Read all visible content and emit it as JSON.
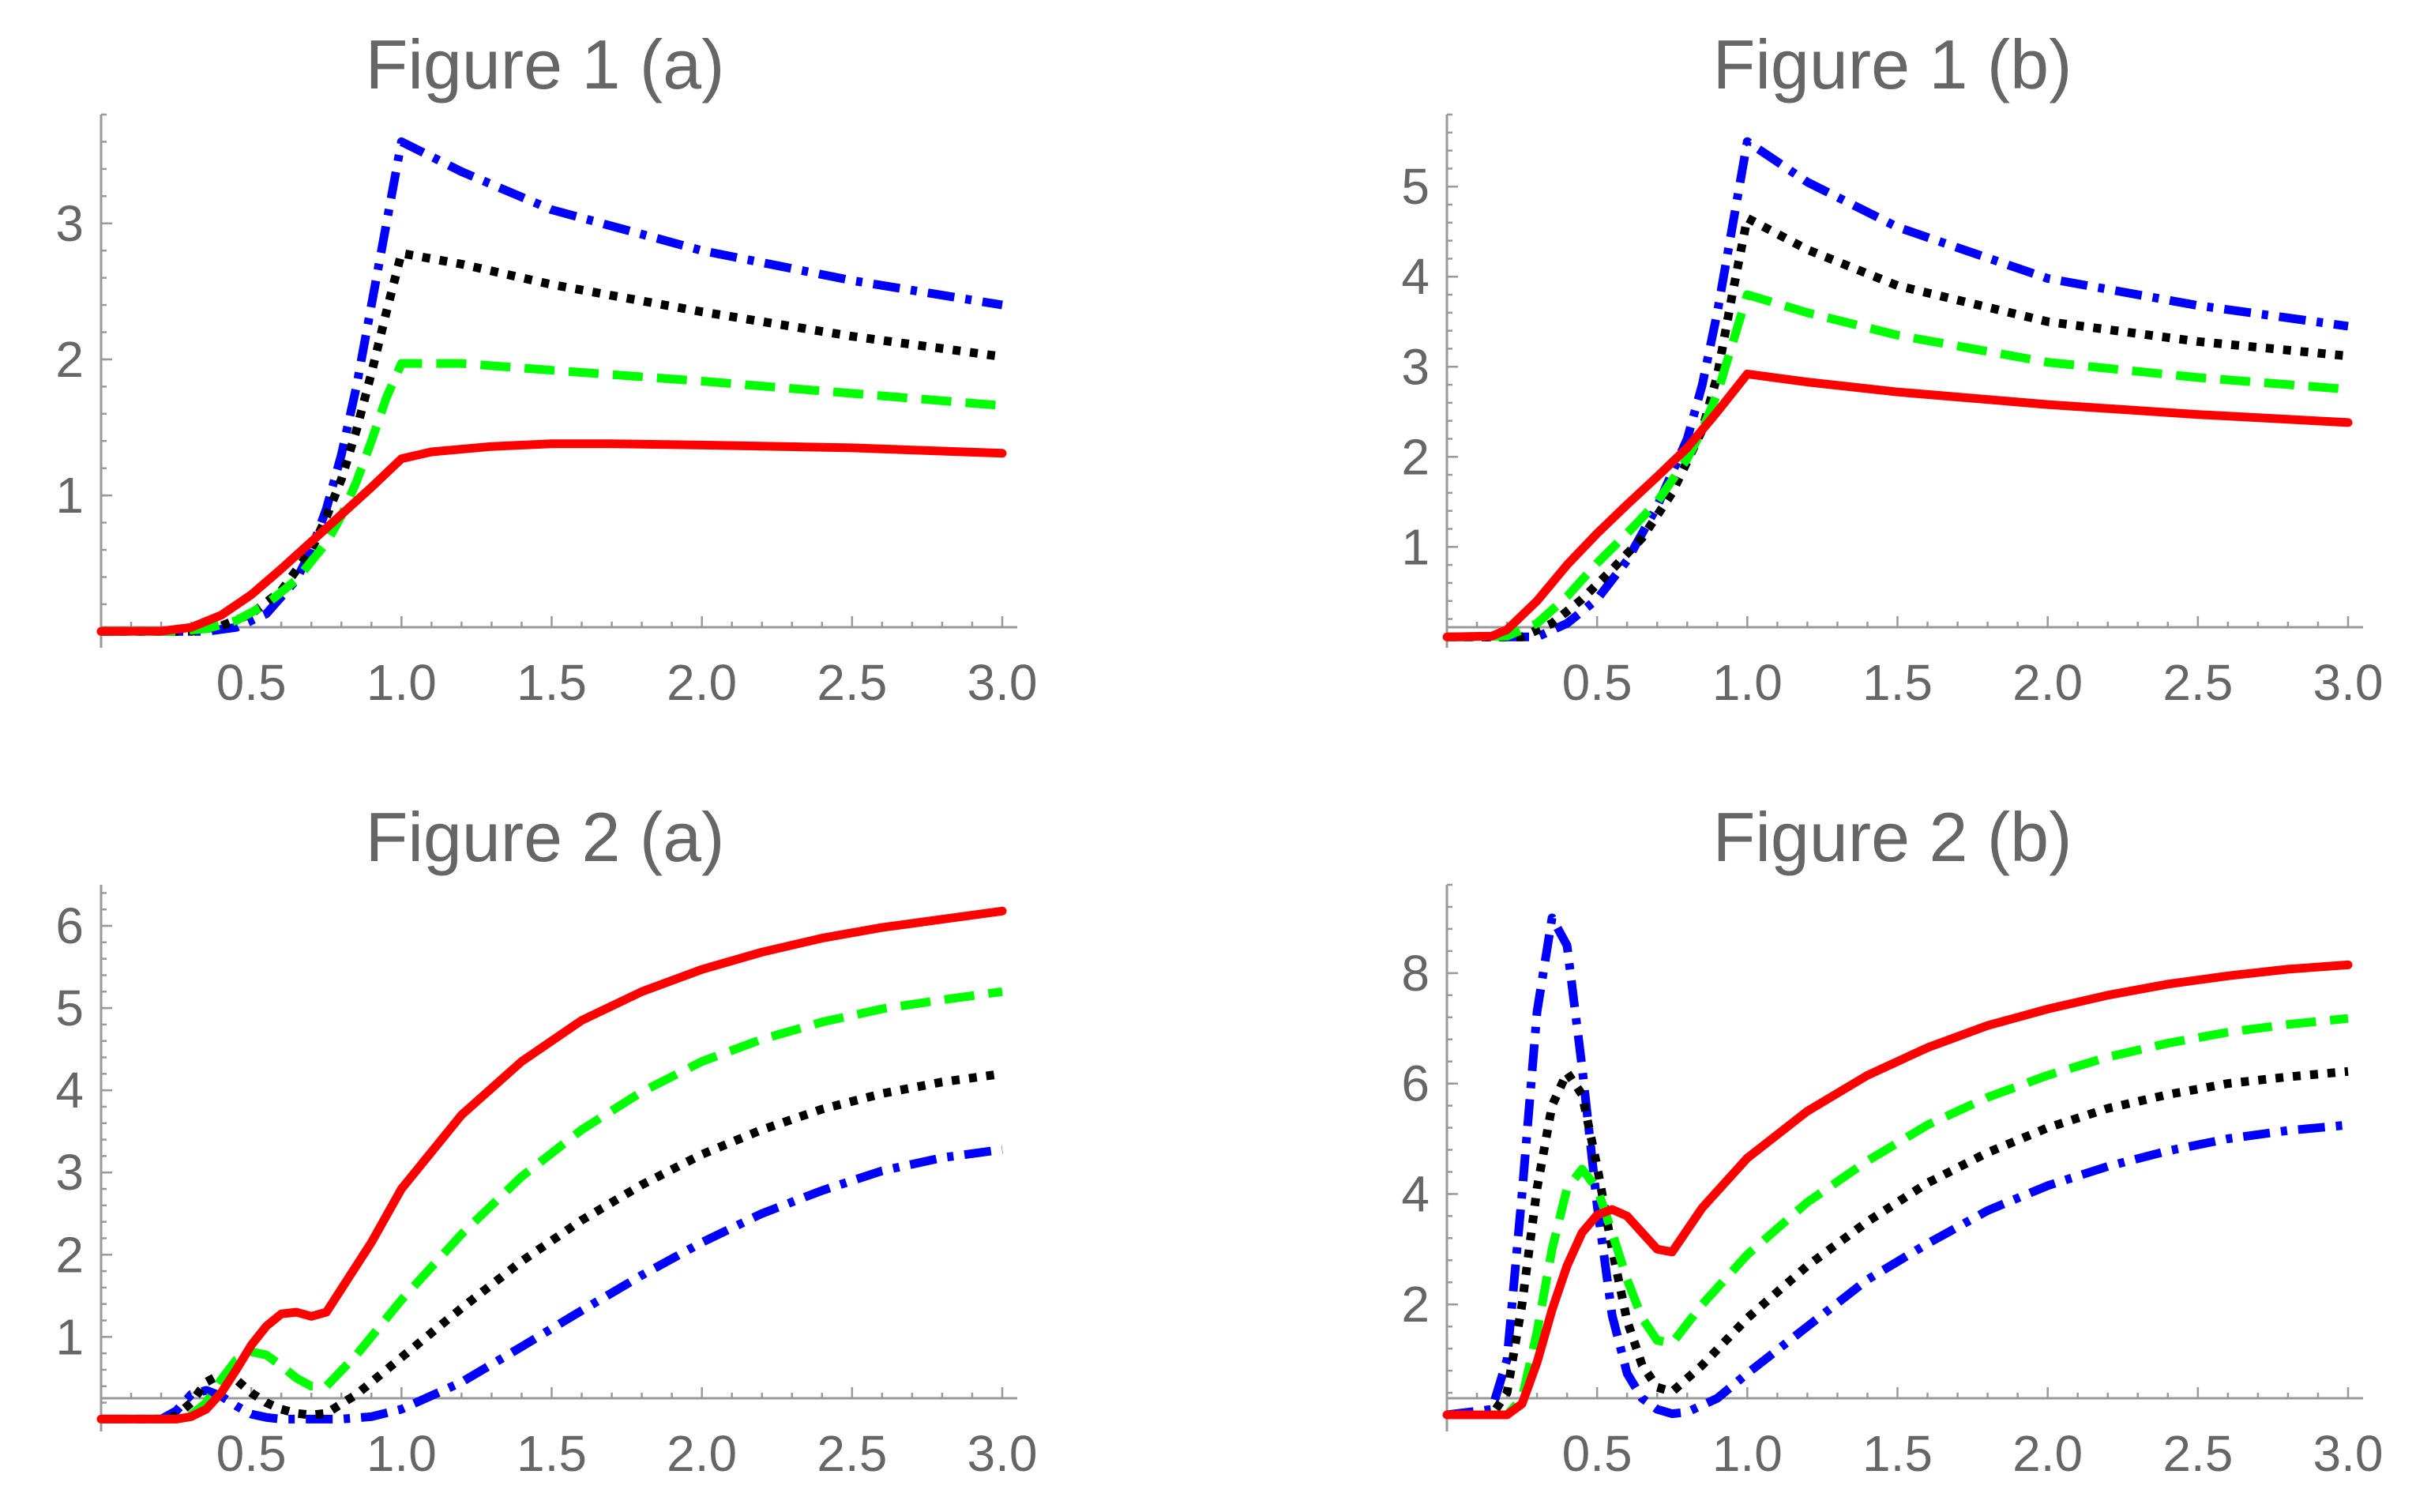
{
  "chart_data": [
    {
      "type": "line",
      "title": "Figure 1 (a)",
      "xlabel": "",
      "ylabel": "",
      "xlim": [
        0,
        3.05
      ],
      "ylim": [
        -0.12,
        3.8
      ],
      "xticks": [
        0.5,
        1.0,
        1.5,
        2.0,
        2.5,
        3.0
      ],
      "xtick_labels": [
        "0.5",
        "1.0",
        "1.5",
        "2.0",
        "2.5",
        "3.0"
      ],
      "yticks": [
        1,
        2,
        3
      ],
      "ytick_labels": [
        "1",
        "2",
        "3"
      ],
      "grid": false,
      "legend": "none",
      "series": [
        {
          "name": "red",
          "color": "#ff0000",
          "style": "solid",
          "x": [
            0,
            0.2,
            0.3,
            0.4,
            0.5,
            0.6,
            0.7,
            0.8,
            0.9,
            1.0,
            1.1,
            1.3,
            1.5,
            1.7,
            2.0,
            2.5,
            3.0
          ],
          "y": [
            0,
            0.002,
            0.03,
            0.12,
            0.27,
            0.46,
            0.66,
            0.86,
            1.06,
            1.27,
            1.32,
            1.36,
            1.38,
            1.38,
            1.37,
            1.35,
            1.31
          ]
        },
        {
          "name": "green",
          "color": "#00ff00",
          "style": "dashed",
          "x": [
            0,
            0.25,
            0.35,
            0.45,
            0.55,
            0.65,
            0.75,
            0.8,
            0.85,
            0.9,
            0.95,
            1.0,
            1.2,
            1.5,
            2.0,
            2.5,
            3.0
          ],
          "y": [
            0,
            0,
            0.02,
            0.08,
            0.2,
            0.38,
            0.65,
            0.85,
            1.1,
            1.4,
            1.72,
            1.97,
            1.97,
            1.92,
            1.84,
            1.75,
            1.66
          ]
        },
        {
          "name": "black",
          "color": "#000000",
          "style": "dotted",
          "x": [
            0,
            0.3,
            0.4,
            0.5,
            0.6,
            0.7,
            0.75,
            0.8,
            0.85,
            0.9,
            0.95,
            1.0,
            1.2,
            1.5,
            2.0,
            2.5,
            3.0
          ],
          "y": [
            0,
            0,
            0.04,
            0.13,
            0.3,
            0.6,
            0.84,
            1.12,
            1.48,
            1.9,
            2.35,
            2.78,
            2.7,
            2.55,
            2.35,
            2.17,
            2.02
          ]
        },
        {
          "name": "blue",
          "color": "#0000ff",
          "style": "dashdot",
          "x": [
            0,
            0.35,
            0.45,
            0.55,
            0.65,
            0.7,
            0.75,
            0.8,
            0.85,
            0.9,
            0.95,
            1.0,
            1.2,
            1.5,
            2.0,
            2.5,
            3.0
          ],
          "y": [
            0,
            0,
            0.03,
            0.13,
            0.38,
            0.6,
            0.9,
            1.3,
            1.8,
            2.4,
            3.0,
            3.6,
            3.38,
            3.1,
            2.8,
            2.58,
            2.4
          ]
        }
      ]
    },
    {
      "type": "line",
      "title": "Figure 1 (b)",
      "xlabel": "",
      "ylabel": "",
      "xlim": [
        0,
        3.05
      ],
      "ylim": [
        -0.12,
        5.8
      ],
      "xticks": [
        0.5,
        1.0,
        1.5,
        2.0,
        2.5,
        3.0
      ],
      "xtick_labels": [
        "0.5",
        "1.0",
        "1.5",
        "2.0",
        "2.5",
        "3.0"
      ],
      "yticks": [
        1,
        2,
        3,
        4,
        5
      ],
      "ytick_labels": [
        "1",
        "2",
        "3",
        "4",
        "5"
      ],
      "grid": false,
      "legend": "none",
      "series": [
        {
          "name": "red",
          "color": "#ff0000",
          "style": "solid",
          "x": [
            0,
            0.15,
            0.2,
            0.3,
            0.4,
            0.5,
            0.6,
            0.7,
            0.8,
            0.9,
            1.0,
            1.2,
            1.5,
            2.0,
            2.5,
            3.0
          ],
          "y": [
            0,
            0.01,
            0.08,
            0.4,
            0.8,
            1.15,
            1.47,
            1.78,
            2.1,
            2.5,
            2.92,
            2.83,
            2.72,
            2.58,
            2.47,
            2.38
          ]
        },
        {
          "name": "green",
          "color": "#00ff00",
          "style": "dashed",
          "x": [
            0,
            0.2,
            0.3,
            0.4,
            0.5,
            0.6,
            0.7,
            0.8,
            0.85,
            0.9,
            0.95,
            1.0,
            1.2,
            1.5,
            2.0,
            2.5,
            3.0
          ],
          "y": [
            0,
            0.01,
            0.15,
            0.45,
            0.82,
            1.15,
            1.5,
            1.98,
            2.3,
            2.7,
            3.25,
            3.8,
            3.6,
            3.35,
            3.05,
            2.88,
            2.75
          ]
        },
        {
          "name": "black",
          "color": "#000000",
          "style": "dotted",
          "x": [
            0,
            0.25,
            0.35,
            0.45,
            0.55,
            0.65,
            0.75,
            0.85,
            0.9,
            0.95,
            1.0,
            1.2,
            1.5,
            2.0,
            2.5,
            3.0
          ],
          "y": [
            0,
            0,
            0.15,
            0.42,
            0.75,
            1.1,
            1.6,
            2.3,
            2.9,
            3.8,
            4.65,
            4.3,
            3.9,
            3.5,
            3.28,
            3.12
          ]
        },
        {
          "name": "blue",
          "color": "#0000ff",
          "style": "dashdot",
          "x": [
            0,
            0.3,
            0.4,
            0.5,
            0.6,
            0.7,
            0.8,
            0.85,
            0.9,
            0.95,
            1.0,
            1.2,
            1.5,
            2.0,
            2.5,
            3.0
          ],
          "y": [
            0,
            0,
            0.15,
            0.42,
            0.85,
            1.45,
            2.2,
            2.8,
            3.6,
            4.55,
            5.5,
            5.05,
            4.55,
            3.98,
            3.68,
            3.45
          ]
        }
      ]
    },
    {
      "type": "line",
      "title": "Figure 2 (a)",
      "xlabel": "",
      "ylabel": "",
      "xlim": [
        0,
        3.05
      ],
      "ylim": [
        -0.15,
        6.5
      ],
      "xticks": [
        0.5,
        1.0,
        1.5,
        2.0,
        2.5,
        3.0
      ],
      "xtick_labels": [
        "0.5",
        "1.0",
        "1.5",
        "2.0",
        "2.5",
        "3.0"
      ],
      "yticks": [
        1,
        2,
        3,
        4,
        5,
        6
      ],
      "ytick_labels": [
        "1",
        "2",
        "3",
        "4",
        "5",
        "6"
      ],
      "grid": false,
      "legend": "none",
      "series": [
        {
          "name": "red",
          "color": "#ff0000",
          "style": "solid",
          "x": [
            0,
            0.25,
            0.3,
            0.35,
            0.4,
            0.45,
            0.5,
            0.55,
            0.6,
            0.65,
            0.7,
            0.75,
            0.9,
            1.0,
            1.2,
            1.4,
            1.6,
            1.8,
            2.0,
            2.2,
            2.4,
            2.6,
            2.8,
            3.0
          ],
          "y": [
            0,
            0,
            0.03,
            0.12,
            0.32,
            0.6,
            0.9,
            1.13,
            1.28,
            1.3,
            1.25,
            1.3,
            2.15,
            2.8,
            3.7,
            4.35,
            4.85,
            5.2,
            5.47,
            5.68,
            5.85,
            5.98,
            6.08,
            6.18
          ]
        },
        {
          "name": "green",
          "color": "#00ff00",
          "style": "dashed",
          "x": [
            0,
            0.25,
            0.3,
            0.35,
            0.4,
            0.45,
            0.5,
            0.55,
            0.6,
            0.65,
            0.7,
            0.75,
            0.85,
            1.0,
            1.2,
            1.4,
            1.6,
            1.8,
            2.0,
            2.2,
            2.4,
            2.6,
            2.8,
            3.0
          ],
          "y": [
            0,
            0,
            0.05,
            0.2,
            0.48,
            0.72,
            0.82,
            0.78,
            0.65,
            0.5,
            0.4,
            0.4,
            0.78,
            1.45,
            2.25,
            2.95,
            3.52,
            3.98,
            4.35,
            4.62,
            4.83,
            4.99,
            5.1,
            5.2
          ]
        },
        {
          "name": "black",
          "color": "#000000",
          "style": "dotted",
          "x": [
            0,
            0.2,
            0.25,
            0.3,
            0.35,
            0.4,
            0.45,
            0.5,
            0.55,
            0.6,
            0.65,
            0.7,
            0.75,
            0.85,
            1.0,
            1.2,
            1.4,
            1.6,
            1.8,
            2.0,
            2.2,
            2.4,
            2.6,
            2.8,
            3.0
          ],
          "y": [
            0,
            0,
            0.04,
            0.2,
            0.45,
            0.55,
            0.48,
            0.32,
            0.2,
            0.12,
            0.07,
            0.05,
            0.07,
            0.3,
            0.75,
            1.35,
            1.92,
            2.42,
            2.85,
            3.22,
            3.52,
            3.77,
            3.96,
            4.1,
            4.2
          ]
        },
        {
          "name": "blue",
          "color": "#0000ff",
          "style": "dashdot",
          "x": [
            0,
            0.2,
            0.25,
            0.3,
            0.35,
            0.4,
            0.45,
            0.5,
            0.55,
            0.6,
            0.7,
            0.8,
            0.9,
            1.0,
            1.2,
            1.4,
            1.6,
            1.8,
            2.0,
            2.2,
            2.4,
            2.6,
            2.8,
            3.0
          ],
          "y": [
            0,
            0,
            0.1,
            0.3,
            0.35,
            0.28,
            0.16,
            0.06,
            0.02,
            0,
            0,
            0,
            0.03,
            0.12,
            0.45,
            0.88,
            1.32,
            1.75,
            2.15,
            2.5,
            2.78,
            3.02,
            3.18,
            3.28
          ]
        }
      ]
    },
    {
      "type": "line",
      "title": "Figure 2 (b)",
      "xlabel": "",
      "ylabel": "",
      "xlim": [
        0,
        3.05
      ],
      "ylim": [
        -0.3,
        9.6
      ],
      "xticks": [
        0.5,
        1.0,
        1.5,
        2.0,
        2.5,
        3.0
      ],
      "xtick_labels": [
        "0.5",
        "1.0",
        "1.5",
        "2.0",
        "2.5",
        "3.0"
      ],
      "yticks": [
        2,
        4,
        6,
        8
      ],
      "ytick_labels": [
        "2",
        "4",
        "6",
        "8"
      ],
      "grid": false,
      "legend": "none",
      "series": [
        {
          "name": "red",
          "color": "#ff0000",
          "style": "solid",
          "x": [
            0,
            0.2,
            0.25,
            0.3,
            0.35,
            0.4,
            0.45,
            0.5,
            0.55,
            0.6,
            0.65,
            0.7,
            0.75,
            0.85,
            1.0,
            1.2,
            1.4,
            1.6,
            1.8,
            2.0,
            2.2,
            2.4,
            2.6,
            2.8,
            3.0
          ],
          "y": [
            0,
            0,
            0.2,
            0.95,
            1.9,
            2.7,
            3.3,
            3.62,
            3.72,
            3.6,
            3.3,
            3.0,
            2.95,
            3.75,
            4.65,
            5.5,
            6.15,
            6.65,
            7.05,
            7.35,
            7.6,
            7.8,
            7.95,
            8.07,
            8.15
          ]
        },
        {
          "name": "green",
          "color": "#00ff00",
          "style": "dashed",
          "x": [
            0,
            0.2,
            0.25,
            0.3,
            0.35,
            0.4,
            0.45,
            0.5,
            0.55,
            0.6,
            0.65,
            0.7,
            0.75,
            0.85,
            1.0,
            1.2,
            1.4,
            1.6,
            1.8,
            2.0,
            2.2,
            2.4,
            2.6,
            2.8,
            3.0
          ],
          "y": [
            0,
            0,
            0.3,
            1.5,
            3.0,
            4.1,
            4.45,
            4.1,
            3.3,
            2.45,
            1.75,
            1.35,
            1.3,
            2.0,
            2.9,
            3.85,
            4.6,
            5.25,
            5.75,
            6.15,
            6.48,
            6.73,
            6.93,
            7.07,
            7.18
          ]
        },
        {
          "name": "black",
          "color": "#000000",
          "style": "dotted",
          "x": [
            0,
            0.15,
            0.2,
            0.25,
            0.3,
            0.35,
            0.4,
            0.45,
            0.5,
            0.55,
            0.6,
            0.65,
            0.7,
            0.75,
            0.85,
            1.0,
            1.2,
            1.4,
            1.6,
            1.8,
            2.0,
            2.2,
            2.4,
            2.6,
            2.8,
            3.0
          ],
          "y": [
            0,
            0,
            0.4,
            2.0,
            4.1,
            5.6,
            6.2,
            5.8,
            4.5,
            3.0,
            1.7,
            0.9,
            0.5,
            0.42,
            0.9,
            1.75,
            2.7,
            3.5,
            4.2,
            4.75,
            5.2,
            5.55,
            5.8,
            6.0,
            6.12,
            6.22
          ]
        },
        {
          "name": "blue",
          "color": "#0000ff",
          "style": "dashdot",
          "x": [
            0,
            0.15,
            0.2,
            0.25,
            0.3,
            0.35,
            0.4,
            0.45,
            0.5,
            0.55,
            0.6,
            0.65,
            0.7,
            0.75,
            0.8,
            0.9,
            1.0,
            1.2,
            1.4,
            1.6,
            1.8,
            2.0,
            2.2,
            2.4,
            2.6,
            2.8,
            3.0
          ],
          "y": [
            0,
            0.1,
            1.0,
            4.0,
            7.3,
            9.0,
            8.5,
            6.3,
            3.8,
            1.8,
            0.75,
            0.3,
            0.1,
            0.02,
            0.05,
            0.3,
            0.75,
            1.6,
            2.45,
            3.1,
            3.7,
            4.15,
            4.5,
            4.78,
            5.0,
            5.15,
            5.25
          ]
        }
      ]
    }
  ]
}
